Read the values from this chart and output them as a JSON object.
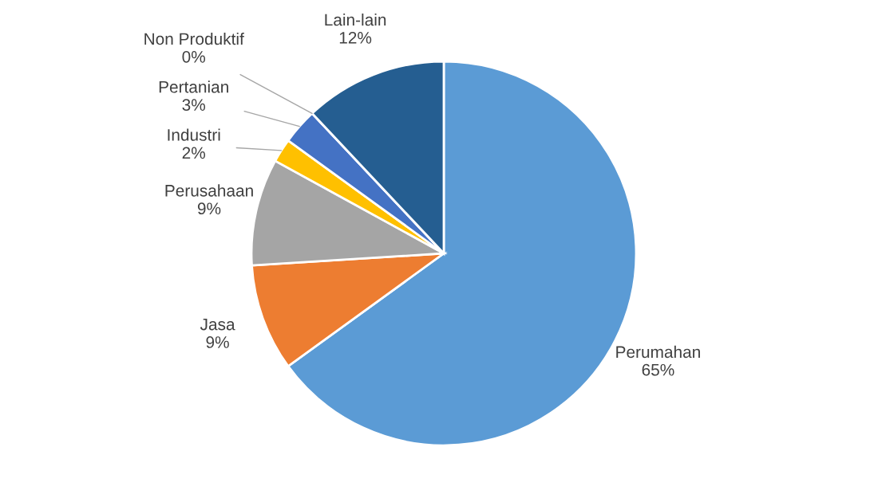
{
  "chart_data": {
    "type": "pie",
    "categories": [
      "Perumahan",
      "Jasa",
      "Perusahaan",
      "Industri",
      "Pertanian",
      "Non Produktif",
      "Lain-lain"
    ],
    "values": [
      65,
      9,
      9,
      2,
      3,
      0,
      12
    ],
    "value_labels": [
      "65%",
      "9%",
      "9%",
      "2%",
      "3%",
      "0%",
      "12%"
    ],
    "colors": [
      "#5b9bd5",
      "#ed7d31",
      "#a5a5a5",
      "#ffc000",
      "#4472c4",
      "#70ad47",
      "#255e91"
    ],
    "legend": false
  }
}
